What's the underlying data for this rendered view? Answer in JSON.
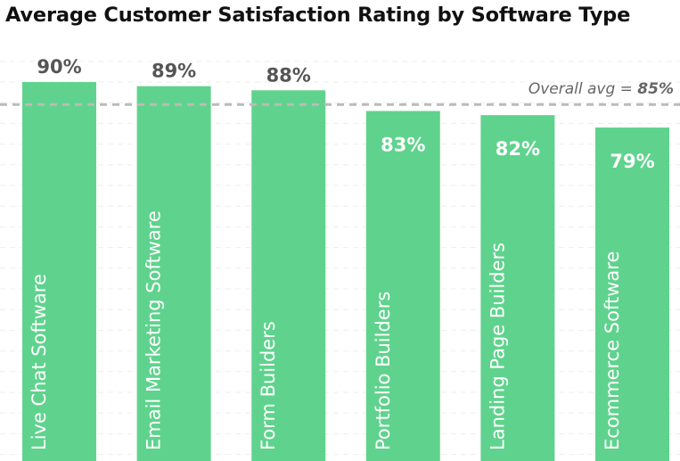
{
  "chart_data": {
    "type": "bar",
    "title": "Average Customer Satisfaction Rating by Software Type",
    "categories": [
      "Live Chat Software",
      "Email Marketing Software",
      "Form Builders",
      "Portfolio Builders",
      "Landing Page Builders",
      "Ecommerce Software"
    ],
    "values": [
      90,
      89,
      88,
      83,
      82,
      79
    ],
    "value_labels": [
      "90%",
      "89%",
      "88%",
      "83%",
      "82%",
      "79%"
    ],
    "unit": "%",
    "reference_line": {
      "value": 85,
      "label_prefix": "Overall avg = ",
      "label_value": "85%",
      "style": "dashed"
    },
    "grid": true,
    "xlabel": "",
    "ylabel": "",
    "colors": {
      "bar": "#5fd38d",
      "label_outside": "#555555",
      "label_inside": "#ffffff",
      "reference_line": "#bbbbbb",
      "grid": "#eeeeee"
    }
  }
}
